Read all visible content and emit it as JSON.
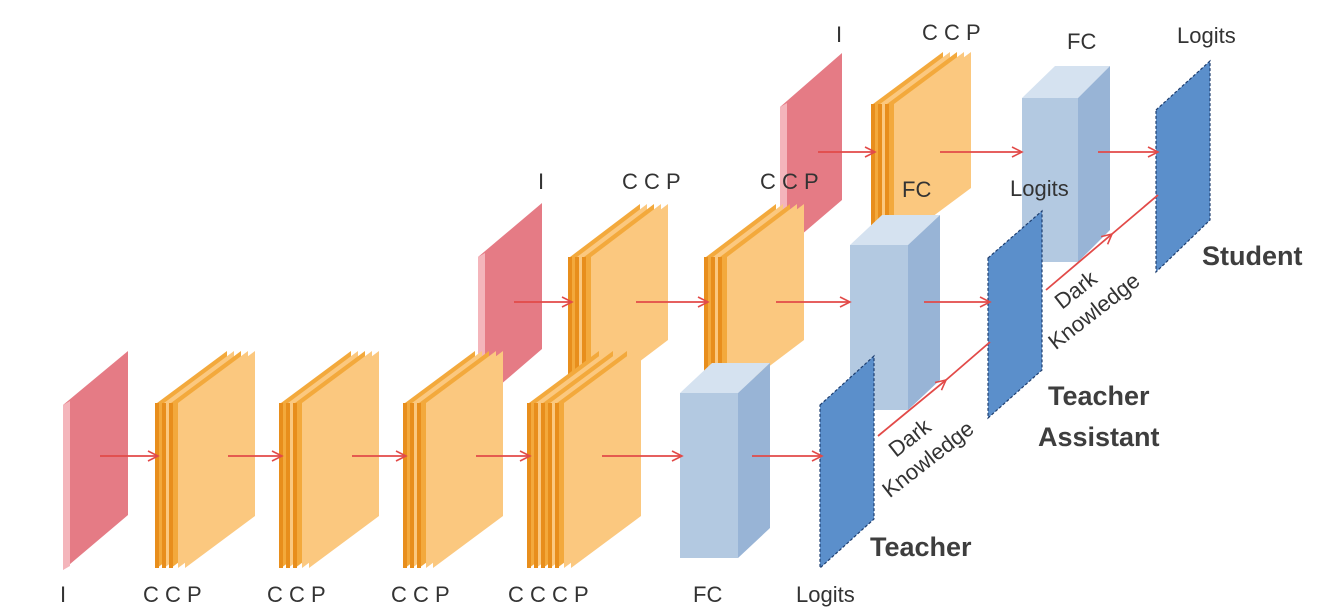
{
  "colors": {
    "input": "#e57b85",
    "conv": "#f3a93c",
    "pool": "#fbc87f",
    "fc": "#b3c9e1",
    "logits": "#5b8fcb",
    "arrow": "#e24a48",
    "text": "#333333"
  },
  "labels": {
    "input": "I",
    "cc_p": "C C  P",
    "ccc_p": "C C C  P",
    "fc": "FC",
    "logits": "Logits",
    "dark_knowledge_line1": "Dark",
    "dark_knowledge_line2": "Knowledge"
  },
  "teacher": {
    "name": "Teacher"
  },
  "teacher_assistant": {
    "name_line1": "Teacher",
    "name_line2": "Assistant"
  },
  "student": {
    "name": "Student"
  }
}
